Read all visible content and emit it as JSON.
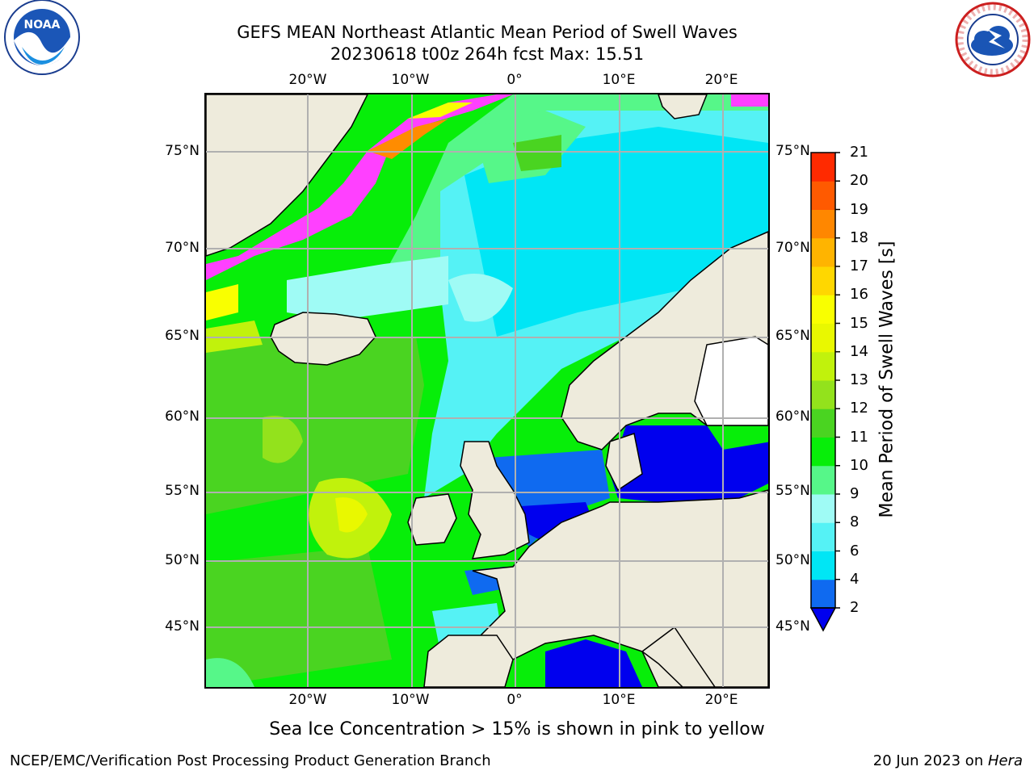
{
  "title": {
    "line1": "GEFS MEAN Northeast Atlantic Mean Period of Swell Waves",
    "line2": "20230618 t00z 264h fcst   Max: 15.51"
  },
  "axes": {
    "top_lon": [
      "20°W",
      "10°W",
      "0°",
      "10°E",
      "20°E"
    ],
    "bottom_lon": [
      "20°W",
      "10°W",
      "0°",
      "10°E",
      "20°E"
    ],
    "left_lat": [
      "75°N",
      "70°N",
      "65°N",
      "60°N",
      "55°N",
      "50°N",
      "45°N"
    ],
    "right_lat": [
      "75°N",
      "70°N",
      "65°N",
      "60°N",
      "55°N",
      "50°N",
      "45°N"
    ]
  },
  "colorbar": {
    "label": "Mean Period of Swell Waves [s]",
    "ticks": [
      "2",
      "4",
      "6",
      "8",
      "9",
      "10",
      "11",
      "12",
      "13",
      "14",
      "15",
      "16",
      "17",
      "18",
      "19",
      "20",
      "21"
    ],
    "colors": [
      "#0f6af0",
      "#00e6f5",
      "#55f2f5",
      "#9ffbf5",
      "#56f789",
      "#07ee09",
      "#4ad421",
      "#93e21c",
      "#c1f20c",
      "#e9f800",
      "#f9ff00",
      "#ffd700",
      "#ffb400",
      "#ff8700",
      "#ff5a00",
      "#ff2a00"
    ],
    "extend_color": "#0000ee"
  },
  "caption": "Sea Ice Concentration > 15% is shown in pink to yellow",
  "footer": {
    "left": "NCEP/EMC/Verification Post Processing Product Generation Branch",
    "right_prefix": "20 Jun 2023 on ",
    "right_host": "Hera"
  },
  "logos": {
    "noaa_text": "NOAA",
    "nws_text": "NATIONAL WEATHER SERVICE"
  }
}
